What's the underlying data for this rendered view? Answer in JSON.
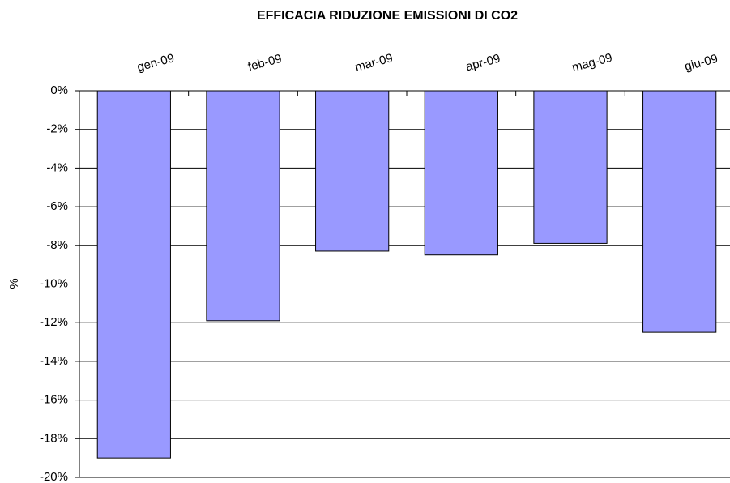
{
  "chart_data": {
    "type": "bar",
    "title": "EFFICACIA RIDUZIONE EMISSIONI DI CO2",
    "y_label": "%",
    "categories": [
      "gen-09",
      "feb-09",
      "mar-09",
      "apr-09",
      "mag-09",
      "giu-09"
    ],
    "values": [
      -19.0,
      -11.9,
      -8.3,
      -8.5,
      -7.9,
      -12.5
    ],
    "color": "#9999ff",
    "ylim": [
      -20,
      0
    ],
    "yticks": [
      {
        "value": 0,
        "label": "0%"
      },
      {
        "value": -2,
        "label": "-2%"
      },
      {
        "value": -4,
        "label": "-4%"
      },
      {
        "value": -6,
        "label": "-6%"
      },
      {
        "value": -8,
        "label": "-8%"
      },
      {
        "value": -10,
        "label": "-10%"
      },
      {
        "value": -12,
        "label": "-12%"
      },
      {
        "value": -14,
        "label": "-14%"
      },
      {
        "value": -16,
        "label": "-16%"
      },
      {
        "value": -18,
        "label": "-18%"
      },
      {
        "value": -20,
        "label": "-20%"
      }
    ],
    "grid": true
  }
}
